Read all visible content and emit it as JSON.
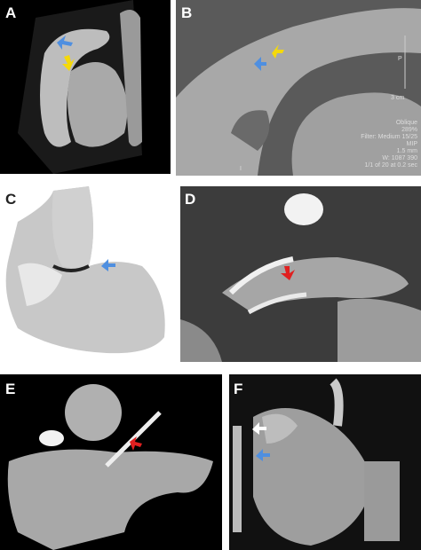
{
  "panels": [
    {
      "label": "A"
    },
    {
      "label": "B"
    },
    {
      "label": "C"
    },
    {
      "label": "D"
    },
    {
      "label": "E"
    },
    {
      "label": "F"
    }
  ],
  "overlay": {
    "scale_letter": "P",
    "scale": "3 cm",
    "lines": [
      "Oblique",
      "289%",
      "Filter: Medium 15/25",
      "MIP",
      "1.5 mm",
      "W: 1087 390",
      "1/1 of 20 at 0.2 sec"
    ],
    "corner": "I"
  }
}
